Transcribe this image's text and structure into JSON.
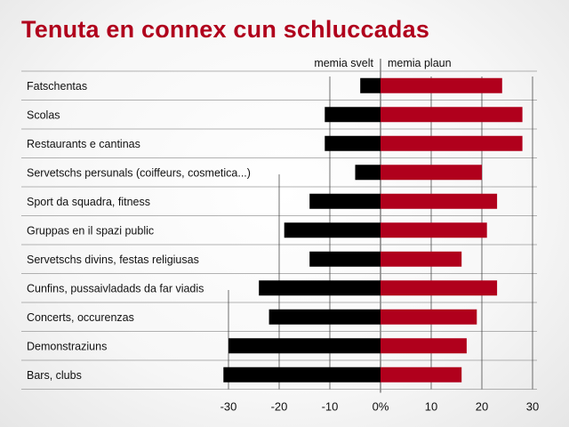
{
  "chart_data": {
    "type": "bar",
    "orientation": "horizontal-diverging",
    "title": "Tenuta en connex cun schluccadas",
    "legend": [
      "memia svelt",
      "memia plaun"
    ],
    "colors": {
      "negative": "#000000",
      "positive": "#b0001c"
    },
    "categories": [
      "Fatschentas",
      "Scolas",
      "Restaurants e cantinas",
      "Servetschs persunals (coiffeurs, cosmetica...)",
      "Sport da squadra, fitness",
      "Gruppas en il spazi public",
      "Servetschs divins, festas religiusas",
      "Cunfins, pussaivladads da far viadis",
      "Concerts, occurenzas",
      "Demonstraziuns",
      "Bars, clubs"
    ],
    "series": [
      {
        "name": "memia svelt",
        "values": [
          -4,
          -11,
          -11,
          -5,
          -14,
          -19,
          -14,
          -24,
          -22,
          -30,
          -31
        ]
      },
      {
        "name": "memia plaun",
        "values": [
          24,
          28,
          28,
          20,
          23,
          21,
          16,
          23,
          19,
          17,
          16
        ]
      }
    ],
    "xlim": [
      -31,
      31
    ],
    "xticks": [
      -30,
      -20,
      -10,
      0,
      10,
      20,
      30
    ],
    "xtick_labels": [
      "-30",
      "-20",
      "-10",
      "0%",
      "10",
      "20",
      "30"
    ]
  }
}
